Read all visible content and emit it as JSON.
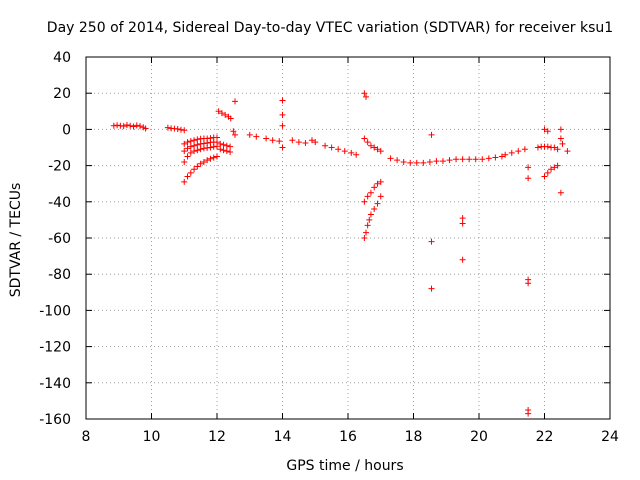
{
  "chart_data": {
    "type": "scatter",
    "title": "Day 250 of 2014, Sidereal Day-to-day VTEC variation (SDTVAR) for receiver ksu1",
    "xlabel": "GPS time / hours",
    "ylabel": "SDTVAR / TECUs",
    "xlim": [
      8,
      24
    ],
    "ylim": [
      -160,
      40
    ],
    "xticks": [
      8,
      10,
      12,
      14,
      16,
      18,
      20,
      22,
      24
    ],
    "yticks": [
      40,
      20,
      0,
      -20,
      -40,
      -60,
      -80,
      -100,
      -120,
      -140,
      -160
    ],
    "grid": true,
    "marker": "plus",
    "color": "#ff0000",
    "series": [
      {
        "name": "SDTVAR",
        "points": [
          [
            8.85,
            2
          ],
          [
            8.95,
            2.3
          ],
          [
            9.05,
            2
          ],
          [
            9.15,
            1.8
          ],
          [
            9.25,
            2.4
          ],
          [
            9.35,
            2
          ],
          [
            9.45,
            1.6
          ],
          [
            9.55,
            2.2
          ],
          [
            9.65,
            1.8
          ],
          [
            9.75,
            1.2
          ],
          [
            9.82,
            0.5
          ],
          [
            10.5,
            1
          ],
          [
            10.6,
            0.6
          ],
          [
            10.7,
            0.4
          ],
          [
            10.8,
            0.2
          ],
          [
            10.9,
            -0.2
          ],
          [
            11.0,
            -0.5
          ],
          [
            11.0,
            -8
          ],
          [
            11.1,
            -7
          ],
          [
            11.2,
            -6.5
          ],
          [
            11.3,
            -6
          ],
          [
            11.4,
            -5.5
          ],
          [
            11.5,
            -5.2
          ],
          [
            11.6,
            -5
          ],
          [
            11.7,
            -5
          ],
          [
            11.8,
            -4.8
          ],
          [
            11.9,
            -4.5
          ],
          [
            12.0,
            -4.5
          ],
          [
            11.0,
            -12
          ],
          [
            11.1,
            -10.5
          ],
          [
            11.2,
            -9.5
          ],
          [
            11.3,
            -9
          ],
          [
            11.4,
            -8.5
          ],
          [
            11.5,
            -8
          ],
          [
            11.6,
            -7.8
          ],
          [
            11.7,
            -7.5
          ],
          [
            11.8,
            -7.2
          ],
          [
            11.9,
            -7
          ],
          [
            12.0,
            -7
          ],
          [
            11.0,
            -18
          ],
          [
            11.1,
            -15
          ],
          [
            11.2,
            -13
          ],
          [
            11.3,
            -12
          ],
          [
            11.4,
            -11.5
          ],
          [
            11.5,
            -11
          ],
          [
            11.6,
            -10.5
          ],
          [
            11.7,
            -10.2
          ],
          [
            11.8,
            -10
          ],
          [
            11.9,
            -9.6
          ],
          [
            12.0,
            -9.3
          ],
          [
            11.0,
            -29
          ],
          [
            11.1,
            -26
          ],
          [
            11.2,
            -24
          ],
          [
            11.3,
            -22
          ],
          [
            11.4,
            -20.5
          ],
          [
            11.5,
            -19
          ],
          [
            11.6,
            -18
          ],
          [
            11.7,
            -17
          ],
          [
            11.8,
            -16.2
          ],
          [
            11.9,
            -15.6
          ],
          [
            12.0,
            -15
          ],
          [
            12.1,
            -8
          ],
          [
            12.2,
            -8.5
          ],
          [
            12.3,
            -9
          ],
          [
            12.4,
            -9.5
          ],
          [
            12.1,
            -11
          ],
          [
            12.2,
            -11.5
          ],
          [
            12.3,
            -12
          ],
          [
            12.4,
            -12.5
          ],
          [
            12.05,
            10
          ],
          [
            12.15,
            9
          ],
          [
            12.25,
            8
          ],
          [
            12.35,
            7
          ],
          [
            12.42,
            6
          ],
          [
            12.5,
            -1
          ],
          [
            12.55,
            -3
          ],
          [
            12.55,
            15.5
          ],
          [
            13.0,
            -3
          ],
          [
            13.2,
            -4
          ],
          [
            13.5,
            -5
          ],
          [
            13.7,
            -6
          ],
          [
            13.9,
            -6.5
          ],
          [
            14.0,
            16
          ],
          [
            14.0,
            8
          ],
          [
            14.0,
            2
          ],
          [
            14.0,
            -10
          ],
          [
            14.3,
            -6
          ],
          [
            14.5,
            -7
          ],
          [
            14.7,
            -7.5
          ],
          [
            14.9,
            -6
          ],
          [
            15.0,
            -7
          ],
          [
            15.3,
            -9
          ],
          [
            15.5,
            -10
          ],
          [
            15.7,
            -11
          ],
          [
            15.9,
            -12
          ],
          [
            16.1,
            -13
          ],
          [
            16.25,
            -14
          ],
          [
            16.5,
            20
          ],
          [
            16.55,
            18
          ],
          [
            16.5,
            -5
          ],
          [
            16.6,
            -7
          ],
          [
            16.7,
            -9
          ],
          [
            16.8,
            -10
          ],
          [
            16.9,
            -11
          ],
          [
            17.0,
            -12
          ],
          [
            16.5,
            -40
          ],
          [
            16.6,
            -37
          ],
          [
            16.7,
            -35
          ],
          [
            16.8,
            -32
          ],
          [
            16.9,
            -30
          ],
          [
            17.0,
            -29
          ],
          [
            16.5,
            -60
          ],
          [
            16.55,
            -57
          ],
          [
            16.6,
            -53
          ],
          [
            16.65,
            -50
          ],
          [
            16.7,
            -47
          ],
          [
            16.8,
            -44
          ],
          [
            16.9,
            -41
          ],
          [
            17.0,
            -37
          ],
          [
            17.3,
            -16
          ],
          [
            17.5,
            -17
          ],
          [
            17.7,
            -18
          ],
          [
            17.9,
            -18.5
          ],
          [
            18.1,
            -18.5
          ],
          [
            18.3,
            -18.5
          ],
          [
            18.5,
            -18
          ],
          [
            18.7,
            -17.5
          ],
          [
            18.9,
            -17.5
          ],
          [
            18.55,
            -3
          ],
          [
            18.55,
            -62
          ],
          [
            18.55,
            -88
          ],
          [
            19.1,
            -17
          ],
          [
            19.3,
            -16.5
          ],
          [
            19.5,
            -16.5
          ],
          [
            19.7,
            -16.5
          ],
          [
            19.9,
            -16.5
          ],
          [
            20.1,
            -16.5
          ],
          [
            20.3,
            -16
          ],
          [
            20.5,
            -15.5
          ],
          [
            20.7,
            -15
          ],
          [
            19.5,
            -49
          ],
          [
            19.5,
            -52
          ],
          [
            19.5,
            -72
          ],
          [
            20.8,
            -14
          ],
          [
            21.0,
            -13
          ],
          [
            21.2,
            -12
          ],
          [
            21.4,
            -11
          ],
          [
            21.5,
            -27
          ],
          [
            21.5,
            -21
          ],
          [
            21.5,
            -83
          ],
          [
            21.5,
            -85
          ],
          [
            21.5,
            -155
          ],
          [
            21.5,
            -157
          ],
          [
            21.8,
            -10
          ],
          [
            21.9,
            -9.5
          ],
          [
            22.0,
            -9.5
          ],
          [
            22.1,
            -9.5
          ],
          [
            22.2,
            -10
          ],
          [
            22.3,
            -10
          ],
          [
            22.4,
            -11
          ],
          [
            22.0,
            -26
          ],
          [
            22.1,
            -24
          ],
          [
            22.2,
            -22
          ],
          [
            22.3,
            -21
          ],
          [
            22.4,
            -20
          ],
          [
            22.0,
            0
          ],
          [
            22.1,
            -1
          ],
          [
            22.5,
            0
          ],
          [
            22.5,
            -5
          ],
          [
            22.55,
            -8
          ],
          [
            22.7,
            -12
          ],
          [
            22.5,
            -35
          ]
        ]
      }
    ]
  }
}
